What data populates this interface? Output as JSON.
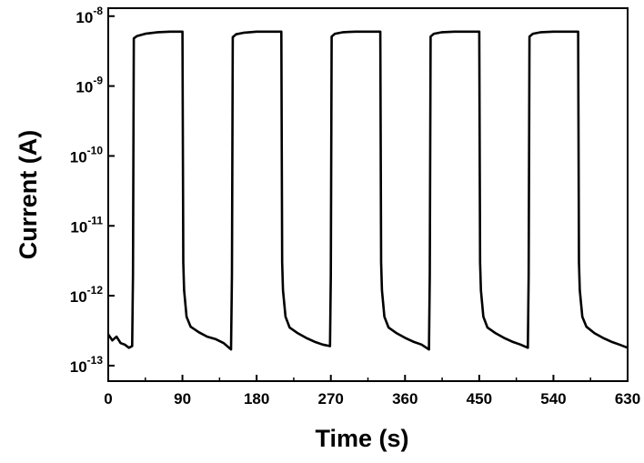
{
  "chart_data": {
    "type": "line",
    "title": "",
    "xlabel": "Time (s)",
    "ylabel": "Current (A)",
    "x_scale": "linear",
    "y_scale": "log",
    "xlim": [
      0,
      630
    ],
    "ylim": [
      6e-14,
      1.3e-08
    ],
    "grid": false,
    "legend": "none",
    "line_color": "#000000",
    "x_ticks": [
      {
        "value": 0,
        "label": "0"
      },
      {
        "value": 90,
        "label": "90"
      },
      {
        "value": 180,
        "label": "180"
      },
      {
        "value": 270,
        "label": "270"
      },
      {
        "value": 360,
        "label": "360"
      },
      {
        "value": 450,
        "label": "450"
      },
      {
        "value": 540,
        "label": "540"
      },
      {
        "value": 630,
        "label": "630"
      }
    ],
    "y_ticks": [
      {
        "value": 1e-13,
        "base": "10",
        "exp": "-13"
      },
      {
        "value": 1e-12,
        "base": "10",
        "exp": "-12"
      },
      {
        "value": 1e-11,
        "base": "10",
        "exp": "-11"
      },
      {
        "value": 1e-10,
        "base": "10",
        "exp": "-10"
      },
      {
        "value": 1e-09,
        "base": "10",
        "exp": "-9"
      },
      {
        "value": 1e-08,
        "base": "10",
        "exp": "-8"
      }
    ],
    "series": [
      {
        "x": [
          0,
          5,
          10,
          15,
          20,
          25,
          29,
          30,
          31,
          35,
          45,
          60,
          75,
          90,
          91,
          92,
          95,
          100,
          110,
          120,
          130,
          140,
          149,
          150,
          151,
          155,
          165,
          180,
          195,
          210,
          211,
          212,
          215,
          220,
          230,
          240,
          250,
          260,
          269,
          270,
          271,
          275,
          285,
          300,
          315,
          330,
          331,
          332,
          335,
          340,
          350,
          360,
          370,
          380,
          389,
          390,
          391,
          395,
          405,
          420,
          435,
          450,
          451,
          452,
          455,
          460,
          470,
          480,
          490,
          500,
          509,
          510,
          511,
          515,
          525,
          540,
          555,
          570,
          571,
          572,
          575,
          580,
          590,
          600,
          610,
          620,
          630
        ],
        "y": [
          2.8e-13,
          2.3e-13,
          2.6e-13,
          2.1e-13,
          2e-13,
          1.8e-13,
          1.9e-13,
          2e-12,
          4.8e-09,
          5.2e-09,
          5.6e-09,
          5.9e-09,
          6e-09,
          6e-09,
          3e-12,
          1.2e-12,
          5e-13,
          3.6e-13,
          3e-13,
          2.6e-13,
          2.4e-13,
          2.1e-13,
          1.7e-13,
          2e-12,
          5e-09,
          5.5e-09,
          5.8e-09,
          6e-09,
          6e-09,
          6e-09,
          3e-12,
          1.2e-12,
          5e-13,
          3.5e-13,
          2.9e-13,
          2.5e-13,
          2.2e-13,
          2e-13,
          1.9e-13,
          2e-12,
          5.1e-09,
          5.6e-09,
          5.9e-09,
          6e-09,
          6e-09,
          6e-09,
          3e-12,
          1.2e-12,
          5e-13,
          3.5e-13,
          2.9e-13,
          2.5e-13,
          2.2e-13,
          2e-13,
          1.7e-13,
          2e-12,
          5.1e-09,
          5.6e-09,
          5.9e-09,
          6e-09,
          6e-09,
          6e-09,
          3e-12,
          1.2e-12,
          5e-13,
          3.5e-13,
          2.9e-13,
          2.5e-13,
          2.2e-13,
          2e-13,
          1.8e-13,
          2e-12,
          5.1e-09,
          5.6e-09,
          5.9e-09,
          6e-09,
          6e-09,
          6e-09,
          3e-12,
          1.2e-12,
          5e-13,
          3.6e-13,
          2.9e-13,
          2.5e-13,
          2.2e-13,
          2e-13,
          1.8e-13
        ]
      }
    ]
  }
}
